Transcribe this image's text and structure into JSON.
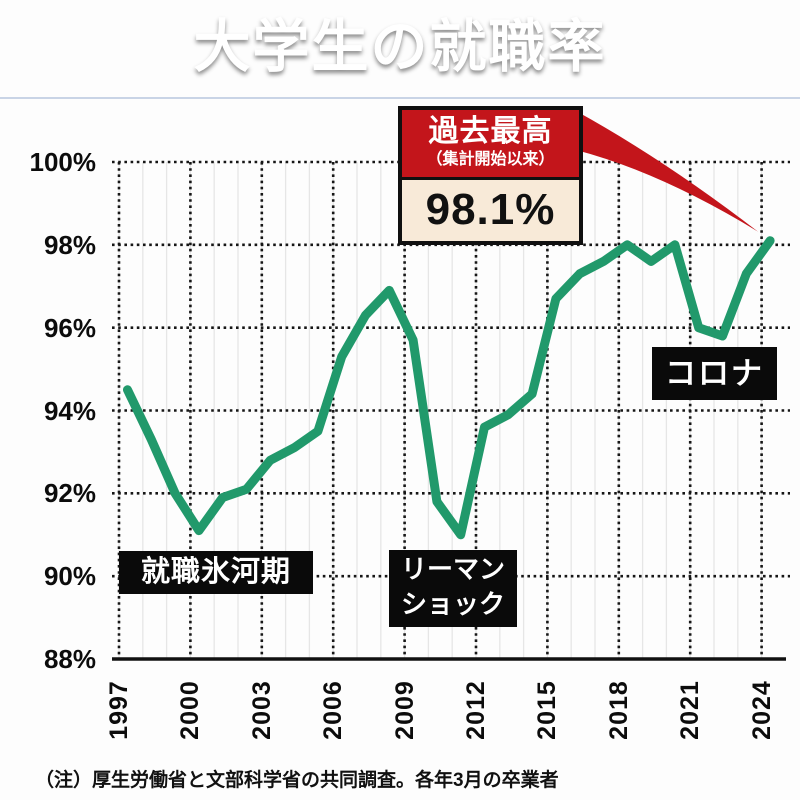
{
  "header": {
    "title": "大学生の就職率"
  },
  "callout": {
    "label": "過去最高",
    "sublabel": "（集計開始以来）",
    "value": "98.1%"
  },
  "annotations": {
    "ice_age": "就職氷河期",
    "lehman_line1": "リーマン",
    "lehman_line2": "ショック",
    "corona": "コロナ"
  },
  "footer": {
    "note": "（注）厚生労働省と文部科学省の共同調査。各年3月の卒業者"
  },
  "colors": {
    "line_green": "#21996b",
    "accent_red": "#c3151b",
    "callout_cream": "#f8ead8",
    "banner_navy": "#1c2c50",
    "annotation_black": "#0a0a0a",
    "grid_dotted": "#161616",
    "grid_minor": "#e6e6e6"
  },
  "chart_data": {
    "type": "line",
    "title": "大学生の就職率",
    "x": [
      1997,
      1998,
      1999,
      2000,
      2001,
      2002,
      2003,
      2004,
      2005,
      2006,
      2007,
      2008,
      2009,
      2010,
      2011,
      2012,
      2013,
      2014,
      2015,
      2016,
      2017,
      2018,
      2019,
      2020,
      2021,
      2022,
      2023,
      2024
    ],
    "values": [
      94.5,
      93.3,
      92.0,
      91.1,
      91.9,
      92.1,
      92.8,
      93.1,
      93.5,
      95.3,
      96.3,
      96.9,
      95.7,
      91.8,
      91.0,
      93.6,
      93.9,
      94.4,
      96.7,
      97.3,
      97.6,
      98.0,
      97.6,
      98.0,
      96.0,
      95.8,
      97.3,
      98.1
    ],
    "xticks": [
      1997,
      2000,
      2003,
      2006,
      2009,
      2012,
      2015,
      2018,
      2021,
      2024
    ],
    "yticks": [
      "100%",
      "98%",
      "96%",
      "94%",
      "92%",
      "90%",
      "88%"
    ],
    "ytick_values": [
      100,
      98,
      96,
      94,
      92,
      90,
      88
    ],
    "ylim": [
      88,
      100
    ],
    "xlabel": "",
    "ylabel": "",
    "grid": "dotted",
    "legend": "none",
    "peak_annotation": {
      "year": 2024,
      "value": 98.1
    }
  }
}
